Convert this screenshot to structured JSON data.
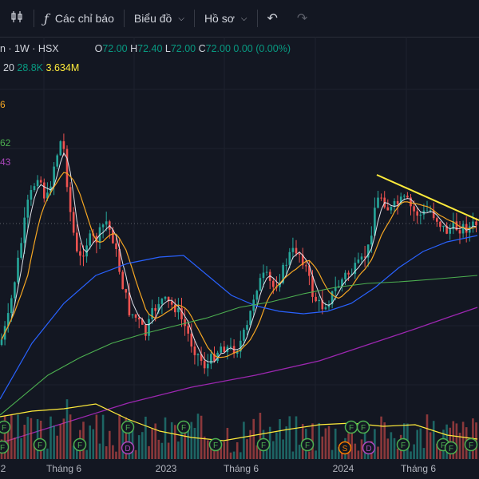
{
  "toolbar": {
    "indicators_label": "Các chỉ báo",
    "chart_label": "Biểu đồ",
    "profile_label": "Hồ sơ"
  },
  "legend": {
    "symbol": "n · 1W · HSX",
    "o_label": "O",
    "o_value": "72.00",
    "h_label": "H",
    "h_value": "72.40",
    "l_label": "L",
    "l_value": "72.00",
    "c_label": "C",
    "c_value": "72.00",
    "change": "0.00 (0.00%)",
    "vol_prefix": "20",
    "vol_value": "28.8K",
    "vol_ma": "3.634M"
  },
  "side_values": {
    "orange": "6",
    "green": "62",
    "purple": "43"
  },
  "colors": {
    "up": "#26a69a",
    "down": "#ef5350",
    "ma_white": "#e0e3eb",
    "ma_orange": "#f5a623",
    "ma_blue": "#2962ff",
    "ma_green": "#4caf50",
    "ma_purple": "#9c27b0",
    "trend": "#ffeb3b",
    "vol_ma": "#ffeb3b"
  },
  "chart_data": {
    "type": "candlestick",
    "x_ticks": [
      "2",
      "Tháng 6",
      "2023",
      "Tháng 6",
      "2024",
      "Tháng 6"
    ],
    "event_markers": [
      {
        "label": "F"
      },
      {
        "label": "F"
      },
      {
        "label": "F"
      },
      {
        "label": "F"
      },
      {
        "label": "F"
      },
      {
        "label": "D"
      },
      {
        "label": "F"
      },
      {
        "label": "F"
      },
      {
        "label": "F"
      },
      {
        "label": "F"
      },
      {
        "label": "F"
      },
      {
        "label": "F"
      },
      {
        "label": "S"
      },
      {
        "label": "D"
      },
      {
        "label": "F"
      },
      {
        "label": "F"
      },
      {
        "label": "F"
      },
      {
        "label": "F"
      }
    ],
    "grid": true
  }
}
